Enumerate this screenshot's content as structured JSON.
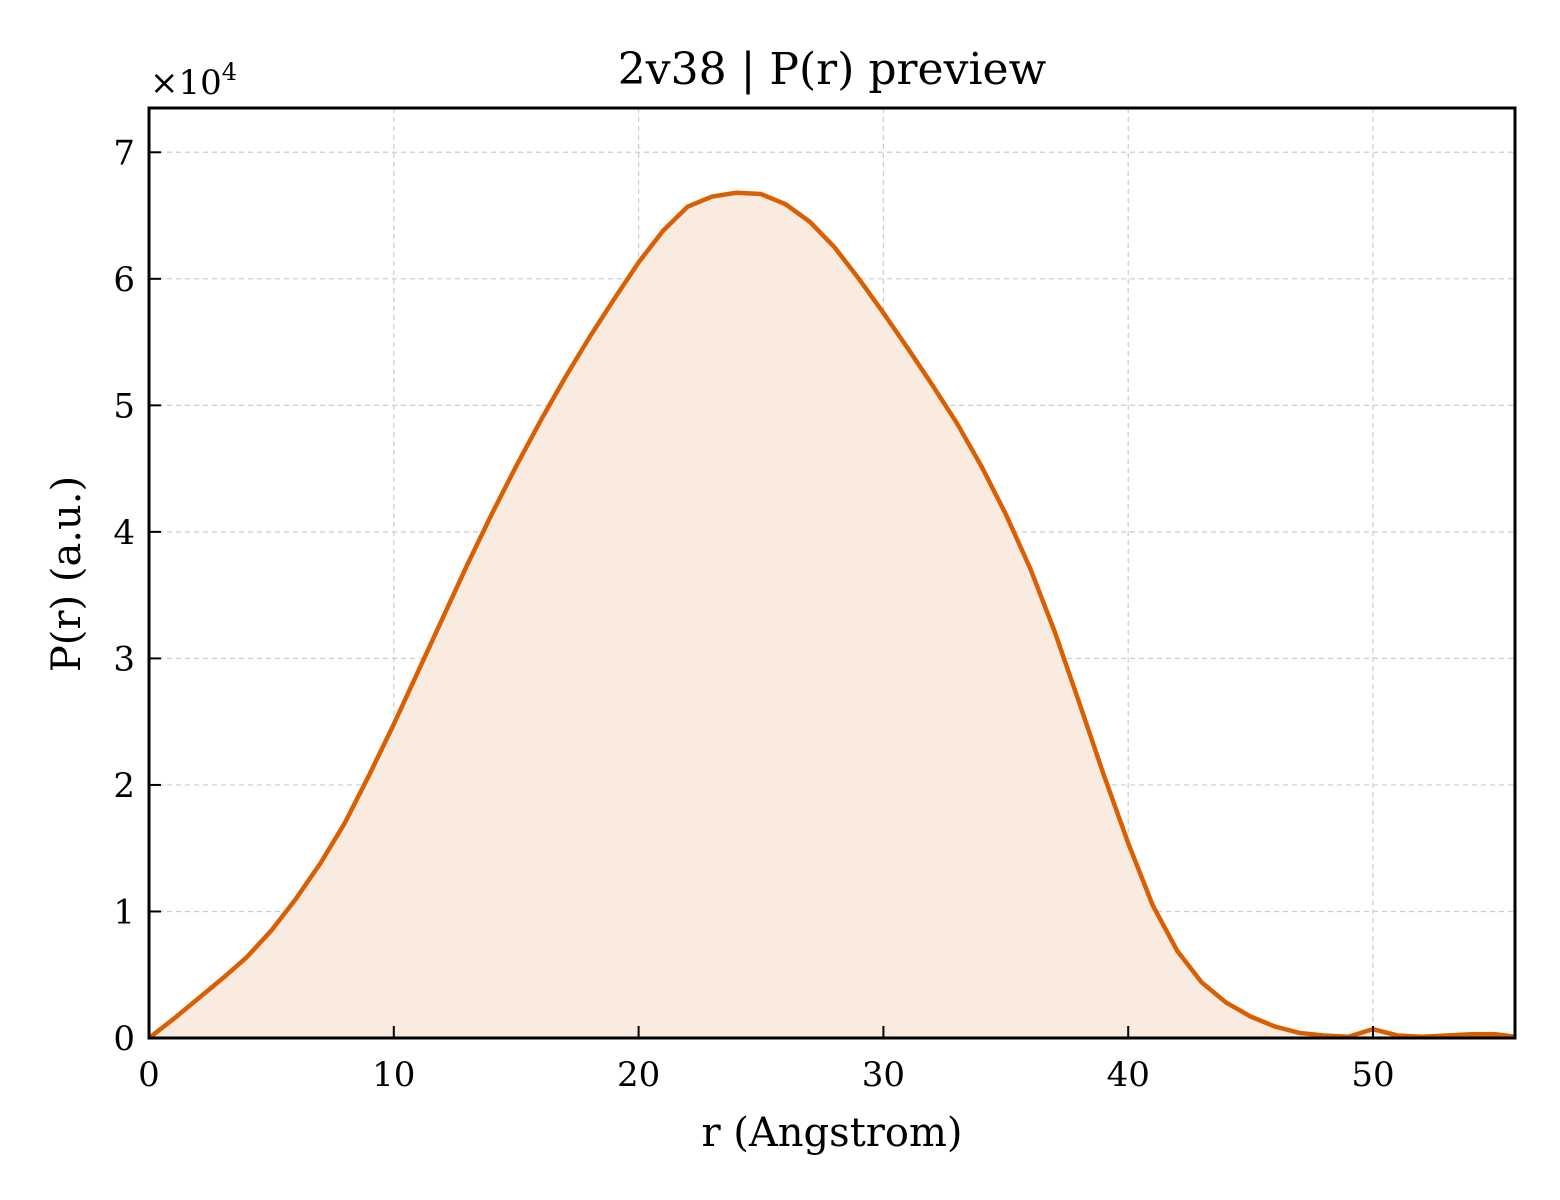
{
  "chart_data": {
    "type": "line",
    "title": "2v38 | P(r) preview",
    "xlabel": "r (Angstrom)",
    "ylabel": "P(r) (a.u.)",
    "y_multiplier": {
      "base": "×10",
      "exponent": "4"
    },
    "xlim": [
      0,
      55.8
    ],
    "ylim": [
      0,
      73500
    ],
    "xticks": [
      0,
      10,
      20,
      30,
      40,
      50
    ],
    "yticks": [
      0,
      10000,
      20000,
      30000,
      40000,
      50000,
      60000,
      70000
    ],
    "xtick_labels": [
      "0",
      "10",
      "20",
      "30",
      "40",
      "50"
    ],
    "ytick_labels": [
      "0",
      "1",
      "2",
      "3",
      "4",
      "5",
      "6",
      "7"
    ],
    "grid": true,
    "fill_under": true,
    "colors": {
      "line": "#d95f02",
      "fill": "#f9ebe0"
    },
    "series": [
      {
        "x": [
          0,
          1,
          2,
          3,
          4,
          5,
          6,
          7,
          8,
          9,
          10,
          11,
          12,
          13,
          14,
          15,
          16,
          17,
          18,
          19,
          20,
          21,
          22,
          23,
          24,
          25,
          26,
          27,
          28,
          29,
          30,
          31,
          32,
          33,
          34,
          35,
          36,
          37,
          38,
          39,
          40,
          41,
          42,
          43,
          44,
          45,
          46,
          47,
          48,
          49,
          50,
          51,
          52,
          53,
          54,
          55,
          55.8
        ],
        "y": [
          0,
          1500,
          3100,
          4700,
          6400,
          8500,
          11000,
          13800,
          17000,
          20800,
          24800,
          29000,
          33200,
          37400,
          41400,
          45200,
          48800,
          52200,
          55400,
          58400,
          61300,
          63800,
          65700,
          66500,
          66800,
          66700,
          65900,
          64500,
          62500,
          60000,
          57300,
          54500,
          51600,
          48600,
          45200,
          41400,
          37100,
          32100,
          26500,
          20800,
          15400,
          10500,
          6900,
          4400,
          2800,
          1700,
          900,
          400,
          200,
          100,
          700,
          200,
          100,
          200,
          300,
          300,
          100
        ]
      }
    ]
  }
}
